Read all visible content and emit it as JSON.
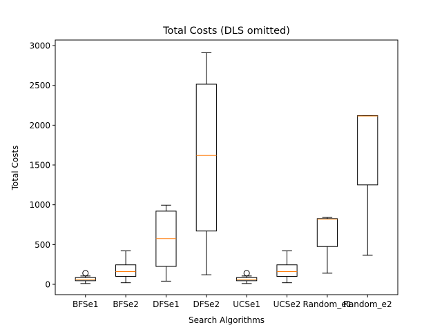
{
  "chart_data": {
    "type": "boxplot",
    "title": "Total Costs (DLS omitted)",
    "xlabel": "Search Algorithms",
    "ylabel": "Total Costs",
    "ylim": [
      -130,
      3070
    ],
    "yticks": [
      0,
      500,
      1000,
      1500,
      2000,
      2500,
      3000
    ],
    "grid": false,
    "legend": "none",
    "categories": [
      "BFSe1",
      "BFSe2",
      "DFSe1",
      "DFSe2",
      "UCSe1",
      "UCSe2",
      "Random_e1",
      "Random_e2"
    ],
    "boxes": [
      {
        "whisker_low": 10,
        "q1": 45,
        "median": 65,
        "q3": 85,
        "whisker_high": 105,
        "outliers": [
          140
        ]
      },
      {
        "whisker_low": 20,
        "q1": 100,
        "median": 160,
        "q3": 245,
        "whisker_high": 420,
        "outliers": []
      },
      {
        "whisker_low": 40,
        "q1": 225,
        "median": 575,
        "q3": 920,
        "whisker_high": 995,
        "outliers": []
      },
      {
        "whisker_low": 120,
        "q1": 670,
        "median": 1620,
        "q3": 2515,
        "whisker_high": 2910,
        "outliers": []
      },
      {
        "whisker_low": 10,
        "q1": 45,
        "median": 65,
        "q3": 85,
        "whisker_high": 105,
        "outliers": [
          140
        ]
      },
      {
        "whisker_low": 20,
        "q1": 100,
        "median": 160,
        "q3": 245,
        "whisker_high": 420,
        "outliers": []
      },
      {
        "whisker_low": 140,
        "q1": 475,
        "median": 820,
        "q3": 825,
        "whisker_high": 840,
        "outliers": []
      },
      {
        "whisker_low": 365,
        "q1": 1250,
        "median": 2115,
        "q3": 2120,
        "whisker_high": 2120,
        "outliers": []
      }
    ],
    "colors": {
      "box": "#000000",
      "median": "#ff7f0e",
      "axes": "#000000",
      "background": "#ffffff"
    }
  }
}
